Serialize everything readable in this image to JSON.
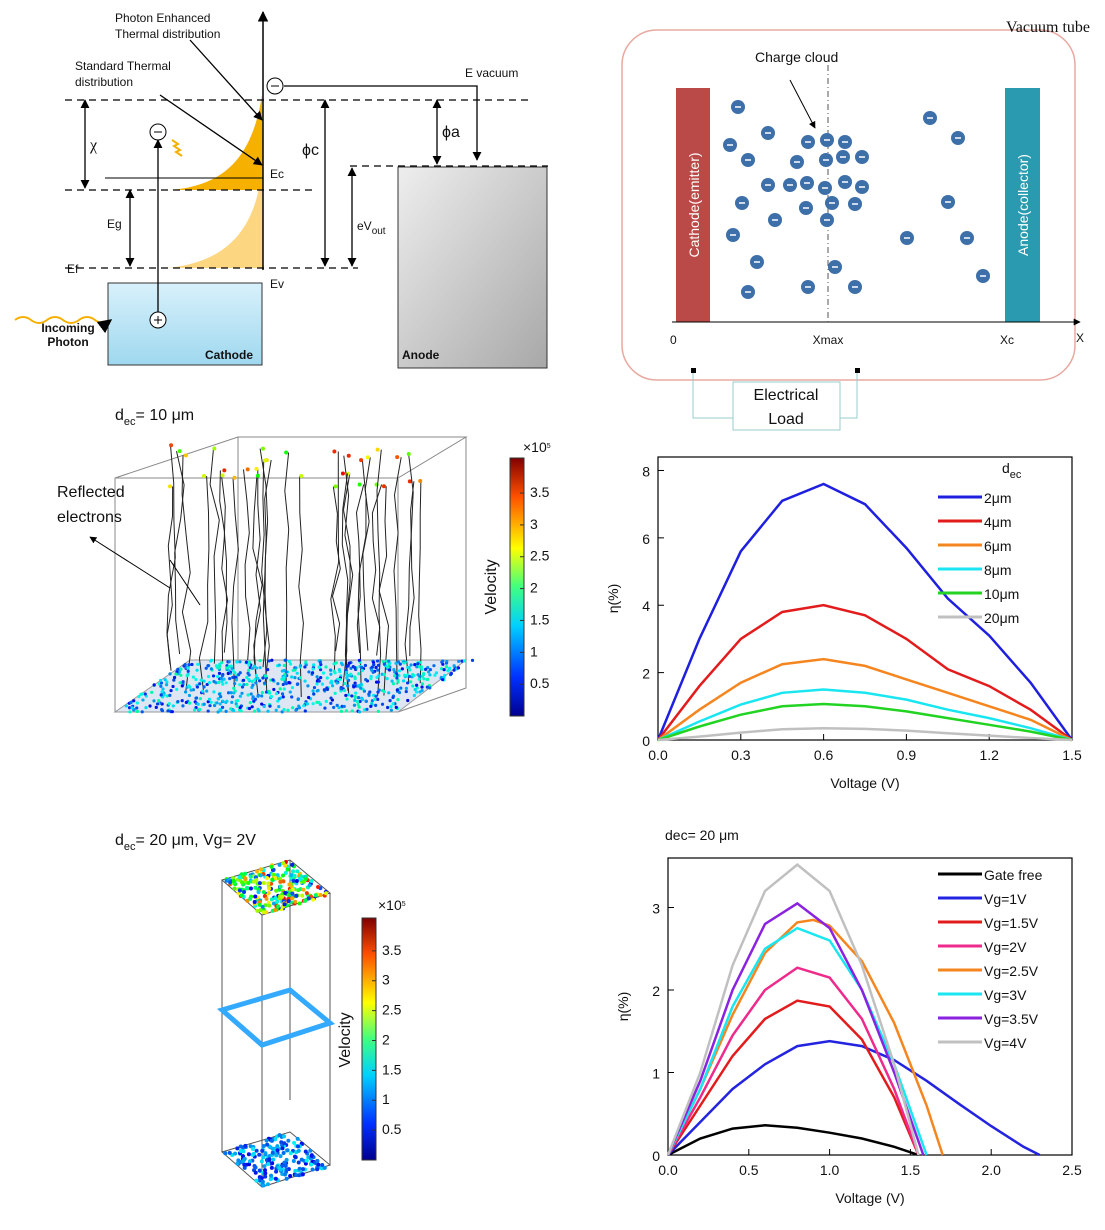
{
  "energy_diagram": {
    "photon_enhanced": [
      "Photon Enhanced",
      "Thermal distribution"
    ],
    "standard_thermal": [
      "Standard Thermal",
      "distribution"
    ],
    "chi": "χ",
    "eg": "Eg",
    "ef": "Ef",
    "ec": "Ec",
    "ev": "Ev",
    "phi_c": "ϕc",
    "phi_a": "ϕa",
    "e_vacuum": "E vacuum",
    "ev_out": [
      "eV",
      "out"
    ],
    "incoming_photon": [
      "Incoming",
      "Photon"
    ],
    "cathode": "Cathode",
    "anode": "Anode"
  },
  "vacuum_tube": {
    "title": "Vacuum tube",
    "charge_cloud": "Charge cloud",
    "cathode": "Cathode(emitter)",
    "anode": "Anode(collector)",
    "axis_labels": [
      "0",
      "Xmax",
      "Xc",
      "X"
    ],
    "load": [
      "Electrical",
      "Load"
    ]
  },
  "simulation_10um": {
    "title": [
      "d",
      "ec",
      "= 10 μm"
    ],
    "annotation": [
      "Reflected",
      "electrons"
    ],
    "colorbar_label": "Velocity",
    "colorbar_scale": [
      "×10",
      "5"
    ],
    "colorbar_ticks": [
      0.5,
      1,
      1.5,
      2,
      2.5,
      3,
      3.5
    ]
  },
  "simulation_20um": {
    "title": [
      "d",
      "ec",
      "= 20 μm, Vg= 2V"
    ],
    "colorbar_label": "Velocity",
    "colorbar_scale": [
      "×10",
      "5"
    ],
    "colorbar_ticks": [
      0.5,
      1,
      1.5,
      2,
      2.5,
      3,
      3.5
    ]
  },
  "chart_data": [
    {
      "type": "line",
      "xlabel": "Voltage (V)",
      "ylabel": "η(%)",
      "legend_title": [
        "d",
        "ec"
      ],
      "legend": "upper right",
      "x": [
        0,
        0.15,
        0.3,
        0.45,
        0.6,
        0.75,
        0.9,
        1.05,
        1.2,
        1.35,
        1.5
      ],
      "xlim": [
        0,
        1.5
      ],
      "xticks": [
        {
          "value": 0,
          "label": "0.0"
        },
        0.3,
        0.6,
        0.9,
        1.2,
        1.5
      ],
      "ylim": [
        0,
        8.4
      ],
      "yticks": [
        0,
        2,
        4,
        6,
        8
      ],
      "series": [
        {
          "name": "2μm",
          "color": "#1f1fe0",
          "values": [
            0,
            3.0,
            5.6,
            7.1,
            7.6,
            7.0,
            5.7,
            4.2,
            3.1,
            1.7,
            0
          ]
        },
        {
          "name": "4μm",
          "color": "#e21c1c",
          "values": [
            0,
            1.6,
            3.0,
            3.8,
            4.0,
            3.7,
            3.0,
            2.1,
            1.6,
            0.9,
            0
          ]
        },
        {
          "name": "6μm",
          "color": "#f5861f",
          "values": [
            0,
            0.9,
            1.7,
            2.25,
            2.4,
            2.2,
            1.8,
            1.4,
            1.0,
            0.6,
            0
          ]
        },
        {
          "name": "8μm",
          "color": "#19e6f0",
          "values": [
            0,
            0.55,
            1.05,
            1.4,
            1.5,
            1.4,
            1.2,
            0.9,
            0.65,
            0.35,
            0
          ]
        },
        {
          "name": "10μm",
          "color": "#22d322",
          "values": [
            0,
            0.4,
            0.75,
            1.0,
            1.07,
            1.0,
            0.85,
            0.65,
            0.45,
            0.25,
            0
          ]
        },
        {
          "name": "20μm",
          "color": "#c0c0c0",
          "values": [
            0,
            0.1,
            0.22,
            0.32,
            0.35,
            0.33,
            0.28,
            0.2,
            0.13,
            0.06,
            0
          ]
        }
      ]
    },
    {
      "type": "line",
      "title": "dec= 20 μm",
      "xlabel": "Voltage (V)",
      "ylabel": "η(%)",
      "legend": "upper right",
      "xlim": [
        0,
        2.5
      ],
      "xticks": [
        {
          "value": 0,
          "label": "0.0"
        },
        0.5,
        {
          "value": 1,
          "label": "1.0"
        },
        1.5,
        {
          "value": 2,
          "label": "2.0"
        },
        2.5
      ],
      "ylim": [
        0,
        3.6
      ],
      "yticks": [
        0,
        1,
        2,
        3
      ],
      "series": [
        {
          "name": "Gate free",
          "color": "#000000",
          "x": [
            0,
            0.2,
            0.4,
            0.6,
            0.8,
            1.0,
            1.2,
            1.4,
            1.55
          ],
          "values": [
            0,
            0.2,
            0.32,
            0.36,
            0.33,
            0.27,
            0.2,
            0.1,
            0
          ]
        },
        {
          "name": "Vg=1V",
          "color": "#2424e0",
          "x": [
            0,
            0.2,
            0.4,
            0.6,
            0.8,
            1.0,
            1.2,
            1.4,
            1.6,
            1.8,
            2.0,
            2.2,
            2.3
          ],
          "values": [
            0,
            0.4,
            0.8,
            1.1,
            1.32,
            1.38,
            1.32,
            1.15,
            0.9,
            0.62,
            0.35,
            0.1,
            0
          ]
        },
        {
          "name": "Vg=1.5V",
          "color": "#e21c1c",
          "x": [
            0,
            0.2,
            0.4,
            0.6,
            0.8,
            1.0,
            1.2,
            1.4,
            1.55
          ],
          "values": [
            0,
            0.6,
            1.2,
            1.65,
            1.87,
            1.8,
            1.4,
            0.7,
            0
          ]
        },
        {
          "name": "Vg=2V",
          "color": "#ee2a8c",
          "x": [
            0,
            0.2,
            0.4,
            0.6,
            0.8,
            1.0,
            1.2,
            1.4,
            1.55
          ],
          "values": [
            0,
            0.7,
            1.45,
            2.0,
            2.27,
            2.15,
            1.65,
            0.8,
            0
          ]
        },
        {
          "name": "Vg=2.5V",
          "color": "#f5861f",
          "x": [
            0,
            0.2,
            0.4,
            0.6,
            0.8,
            0.9,
            1.0,
            1.2,
            1.4,
            1.6,
            1.7
          ],
          "values": [
            0,
            0.8,
            1.7,
            2.45,
            2.82,
            2.85,
            2.78,
            2.35,
            1.6,
            0.6,
            0
          ]
        },
        {
          "name": "Vg=3V",
          "color": "#19e6f0",
          "x": [
            0,
            0.2,
            0.4,
            0.6,
            0.8,
            1.0,
            1.2,
            1.4,
            1.6
          ],
          "values": [
            0,
            0.8,
            1.8,
            2.5,
            2.75,
            2.6,
            2.0,
            1.1,
            0
          ]
        },
        {
          "name": "Vg=3.5V",
          "color": "#8a22e0",
          "x": [
            0,
            0.2,
            0.4,
            0.6,
            0.8,
            1.0,
            1.2,
            1.4,
            1.58
          ],
          "values": [
            0,
            0.9,
            2.0,
            2.8,
            3.05,
            2.75,
            2.0,
            1.0,
            0
          ]
        },
        {
          "name": "Vg=4V",
          "color": "#c0c0c0",
          "x": [
            0,
            0.2,
            0.4,
            0.6,
            0.8,
            1.0,
            1.2,
            1.4,
            1.55
          ],
          "values": [
            0,
            1.0,
            2.3,
            3.2,
            3.52,
            3.2,
            2.3,
            1.1,
            0
          ]
        }
      ]
    }
  ]
}
